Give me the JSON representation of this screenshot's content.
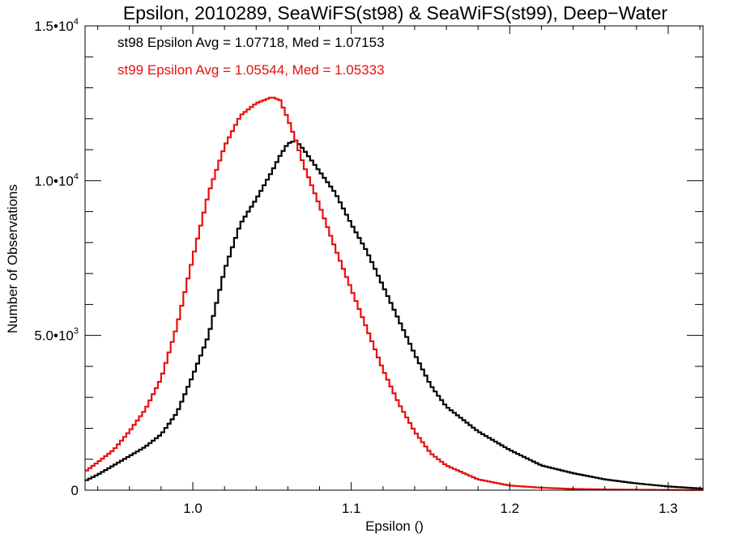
{
  "chart_data": {
    "type": "line",
    "title": "Epsilon, 2010289, SeaWiFS(st98) & SeaWiFS(st99), Deep−Water",
    "xlabel": "Epsilon ()",
    "ylabel": "Number of Observations",
    "xlim": [
      0.932,
      1.322
    ],
    "ylim": [
      0,
      15000
    ],
    "grid": false,
    "x_ticks": [
      {
        "value": 1.0,
        "label": "1.0"
      },
      {
        "value": 1.1,
        "label": "1.1"
      },
      {
        "value": 1.2,
        "label": "1.2"
      },
      {
        "value": 1.3,
        "label": "1.3"
      }
    ],
    "y_ticks": [
      {
        "value": 0,
        "mant": "0",
        "exp": ""
      },
      {
        "value": 5000,
        "mant": "5.0•10",
        "exp": "3"
      },
      {
        "value": 10000,
        "mant": "1.0•10",
        "exp": "4"
      },
      {
        "value": 15000,
        "mant": "1.5•10",
        "exp": "4"
      }
    ],
    "annotations": [
      {
        "text": "st98 Epsilon Avg = 1.07718, Med = 1.07153",
        "color": "#000000"
      },
      {
        "text": "st99 Epsilon Avg = 1.05544, Med = 1.05333",
        "color": "#e8100d"
      }
    ],
    "series": [
      {
        "color": "#000000",
        "x": [
          0.932,
          0.94,
          0.95,
          0.96,
          0.97,
          0.98,
          0.99,
          1.0,
          1.01,
          1.02,
          1.03,
          1.04,
          1.05,
          1.055,
          1.06,
          1.065,
          1.07,
          1.08,
          1.09,
          1.1,
          1.11,
          1.12,
          1.13,
          1.14,
          1.15,
          1.16,
          1.18,
          1.2,
          1.22,
          1.24,
          1.26,
          1.28,
          1.3,
          1.322
        ],
        "y": [
          300,
          500,
          800,
          1100,
          1400,
          1800,
          2500,
          3700,
          5000,
          7100,
          8600,
          9400,
          10300,
          10800,
          11200,
          11300,
          11000,
          10300,
          9600,
          8600,
          7700,
          6600,
          5500,
          4400,
          3400,
          2700,
          1900,
          1300,
          800,
          550,
          350,
          220,
          120,
          50
        ]
      },
      {
        "color": "#e8100d",
        "x": [
          0.932,
          0.94,
          0.95,
          0.96,
          0.97,
          0.98,
          0.99,
          1.0,
          1.01,
          1.02,
          1.03,
          1.04,
          1.05,
          1.055,
          1.06,
          1.065,
          1.07,
          1.08,
          1.09,
          1.1,
          1.11,
          1.12,
          1.13,
          1.14,
          1.15,
          1.16,
          1.18,
          1.2,
          1.22,
          1.24,
          1.26,
          1.28,
          1.3,
          1.322
        ],
        "y": [
          600,
          900,
          1300,
          1900,
          2600,
          3600,
          5300,
          7500,
          9600,
          11100,
          12100,
          12500,
          12700,
          12600,
          12000,
          11300,
          10500,
          9200,
          7800,
          6500,
          5200,
          3900,
          2800,
          1900,
          1200,
          800,
          350,
          150,
          80,
          40,
          25,
          15,
          10,
          5
        ]
      }
    ]
  }
}
